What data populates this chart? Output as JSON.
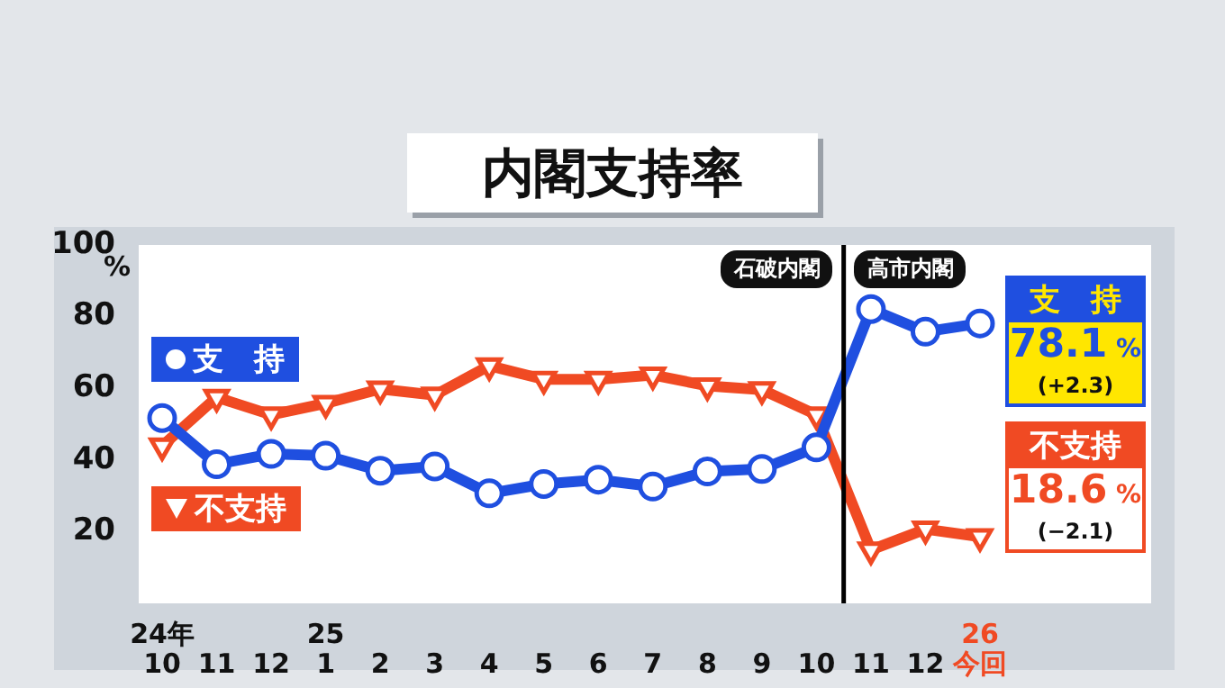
{
  "chart_data": {
    "type": "line",
    "title": "内閣支持率",
    "ylabel": "%",
    "categories": [
      "24年\n10",
      "11",
      "12",
      "25\n1",
      "2",
      "3",
      "4",
      "5",
      "6",
      "7",
      "8",
      "9",
      "10",
      "11",
      "12",
      "26\n今回"
    ],
    "series": [
      {
        "name": "支　持",
        "color": "#1f4fe0",
        "marker": "circle",
        "values": [
          51.7,
          38.8,
          41.7,
          41.2,
          37.0,
          38.2,
          30.7,
          33.3,
          34.5,
          32.6,
          36.8,
          37.5,
          43.5,
          82.1,
          75.8,
          78.1
        ],
        "value_labels": [
          null,
          null,
          null,
          null,
          null,
          null,
          null,
          null,
          null,
          null,
          null,
          null,
          null,
          null,
          null,
          "78.1 %"
        ]
      },
      {
        "name": "不支持",
        "color": "#f04a23",
        "marker": "triangle",
        "values": [
          43.9,
          57.5,
          52.6,
          55.8,
          59.8,
          58.1,
          66.3,
          62.5,
          62.5,
          63.7,
          60.7,
          59.6,
          52.6,
          14.9,
          20.7,
          18.6
        ],
        "value_labels": [
          null,
          null,
          null,
          null,
          null,
          null,
          null,
          null,
          null,
          null,
          null,
          null,
          null,
          null,
          null,
          "18.6 %"
        ]
      }
    ],
    "ylim": [
      0,
      100
    ],
    "yticks": [
      20,
      40,
      60,
      80,
      100
    ],
    "grid": false,
    "legend": "right",
    "annotations": [
      "石破内閣",
      "高市内閣",
      "(+2.3)",
      "(−2.1)"
    ]
  }
}
